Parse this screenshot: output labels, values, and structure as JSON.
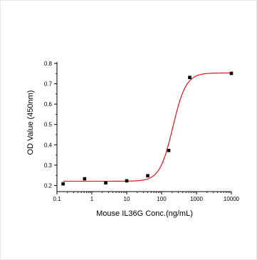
{
  "chart_data": {
    "type": "scatter",
    "xlabel": "Mouse IL36G Conc.(ng/mL)",
    "ylabel": "OD Value (450nm)",
    "x_scale": "log",
    "xlim": [
      0.1,
      10000
    ],
    "ylim": [
      0.17,
      0.8
    ],
    "x_ticks": [
      0.1,
      1,
      10,
      100,
      1000,
      10000
    ],
    "x_tick_labels": [
      "0.1",
      "1",
      "10",
      "100",
      "1000",
      "10000"
    ],
    "y_ticks": [
      0.2,
      0.3,
      0.4,
      0.5,
      0.6,
      0.7,
      0.8
    ],
    "y_tick_labels": [
      "0.2",
      "0.3",
      "0.4",
      "0.5",
      "0.6",
      "0.7",
      "0.8"
    ],
    "grid": false,
    "series": [
      {
        "kind": "points",
        "marker": "square",
        "color": "#000000",
        "x": [
          0.15,
          0.62,
          2.5,
          10,
          40,
          160,
          640,
          10000
        ],
        "y": [
          0.208,
          0.233,
          0.213,
          0.223,
          0.248,
          0.372,
          0.731,
          0.751
        ]
      },
      {
        "kind": "fit_curve",
        "model": "4PL",
        "color": "#e8101a",
        "bottom": 0.221,
        "top": 0.753,
        "ec50": 210,
        "hill": 2.3,
        "x_range": [
          0.15,
          10000
        ]
      }
    ]
  }
}
